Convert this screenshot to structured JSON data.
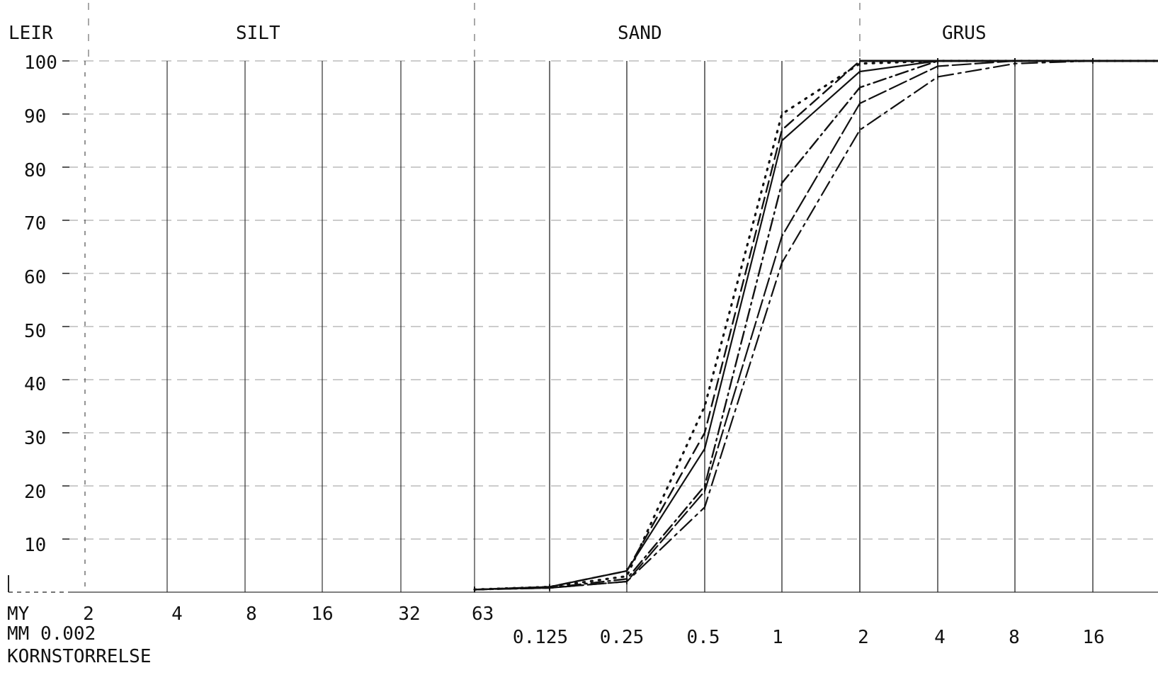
{
  "chart_data": {
    "type": "line",
    "title": "",
    "regions": [
      "LEIR",
      "SILT",
      "SAND",
      "GRUS"
    ],
    "ylabel": "",
    "ylim": [
      0,
      100
    ],
    "yticks": [
      "100",
      "90",
      "80",
      "70",
      "60",
      "50",
      "40",
      "30",
      "20",
      "10"
    ],
    "x_scale": "log2",
    "xlim_mm": [
      0.001,
      32
    ],
    "my_row_label": "MY",
    "my_ticks": [
      "2",
      "4",
      "8",
      "16",
      "32",
      "63"
    ],
    "mm_row_label": "MM 0.002",
    "mm_ticks": [
      "0.125",
      "0.25",
      "0.5",
      "1",
      "2",
      "4",
      "8",
      "16"
    ],
    "xlabel": "KORNSTORRELSE",
    "grid": true,
    "series": [
      {
        "style": "dotted",
        "x": [
          0.063,
          0.125,
          0.25,
          0.5,
          1,
          2,
          4,
          8,
          16,
          32
        ],
        "y": [
          0.5,
          1,
          3,
          35,
          90,
          99.5,
          100,
          100,
          100,
          100
        ]
      },
      {
        "style": "dashed",
        "x": [
          0.063,
          0.125,
          0.25,
          0.5,
          1,
          2,
          4,
          8,
          16,
          32
        ],
        "y": [
          0.5,
          1,
          4,
          30,
          87,
          100,
          100,
          100,
          100,
          100
        ]
      },
      {
        "style": "solid",
        "x": [
          0.063,
          0.125,
          0.25,
          0.5,
          1,
          2,
          4,
          8,
          16,
          32
        ],
        "y": [
          0.5,
          1,
          4,
          27,
          85,
          98,
          100,
          100,
          100,
          100
        ]
      },
      {
        "style": "dashdot",
        "x": [
          0.063,
          0.125,
          0.25,
          0.5,
          1,
          2,
          4,
          8,
          16,
          32
        ],
        "y": [
          0.5,
          0.8,
          2.5,
          20,
          77,
          95,
          100,
          100,
          100,
          100
        ]
      },
      {
        "style": "longdash",
        "x": [
          0.063,
          0.125,
          0.25,
          0.5,
          1,
          2,
          4,
          8,
          16,
          32
        ],
        "y": [
          0.5,
          0.8,
          2,
          19,
          67,
          92,
          99,
          100,
          100,
          100
        ]
      },
      {
        "style": "dashdotlong",
        "x": [
          0.063,
          0.125,
          0.25,
          0.5,
          1,
          2,
          4,
          8,
          16,
          32
        ],
        "y": [
          0.5,
          0.8,
          2,
          16,
          62,
          87,
          97,
          99.5,
          100,
          100
        ]
      }
    ]
  }
}
